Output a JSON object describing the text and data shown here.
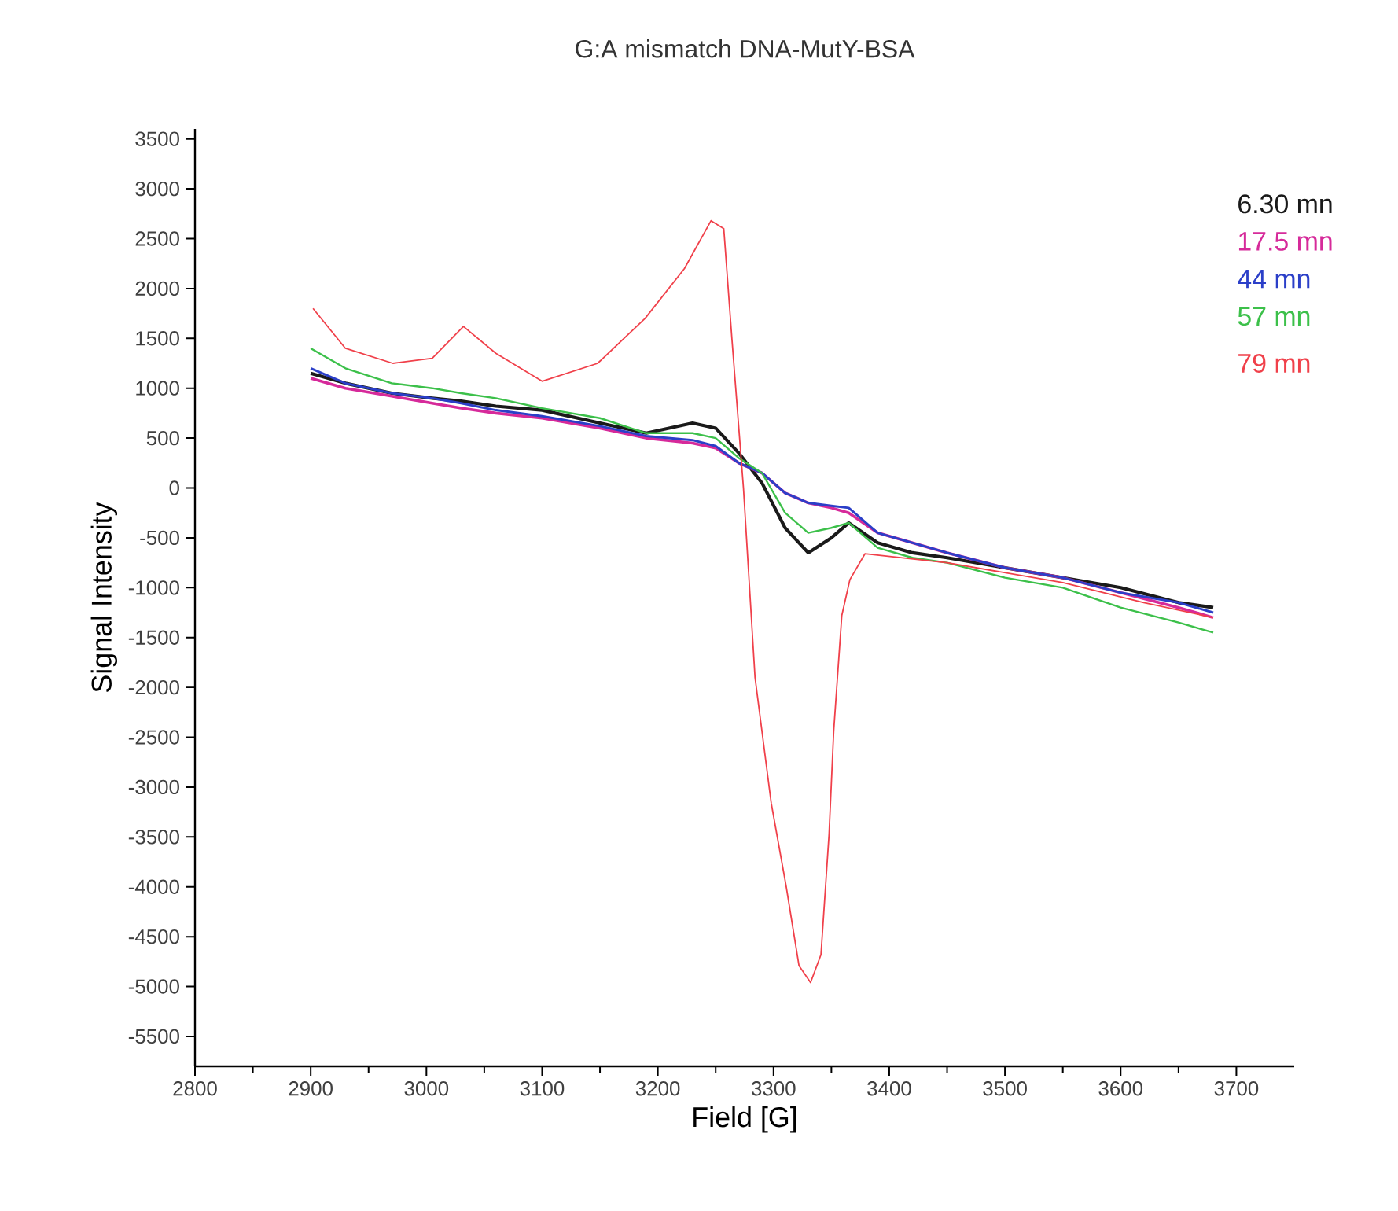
{
  "chart_data": {
    "type": "line",
    "title": "G:A mismatch DNA-MutY-BSA",
    "xlabel": "Field [G]",
    "ylabel": "Signal Intensity",
    "x": [
      2900,
      2930,
      2970,
      3005,
      3030,
      3060,
      3100,
      3150,
      3190,
      3230,
      3250,
      3270,
      3290,
      3310,
      3330,
      3350,
      3365,
      3390,
      3420,
      3450,
      3500,
      3550,
      3600,
      3650,
      3680
    ],
    "series": [
      {
        "name": "6.30 mn",
        "color": "#1a1a1a",
        "values": [
          1150,
          1050,
          950,
          900,
          870,
          820,
          780,
          650,
          550,
          650,
          600,
          350,
          50,
          -400,
          -650,
          -500,
          -350,
          -550,
          -650,
          -700,
          -800,
          -900,
          -1000,
          -1150,
          -1200
        ]
      },
      {
        "name": "17.5 mn",
        "color": "#d62a9a",
        "values": [
          1100,
          1000,
          920,
          850,
          800,
          750,
          700,
          600,
          500,
          450,
          400,
          250,
          150,
          -50,
          -150,
          -200,
          -250,
          -450,
          -550,
          -650,
          -800,
          -900,
          -1050,
          -1200,
          -1300
        ]
      },
      {
        "name": "44 mn",
        "color": "#2b3fc8",
        "values": [
          1200,
          1050,
          950,
          900,
          850,
          780,
          720,
          620,
          520,
          480,
          420,
          250,
          150,
          -50,
          -150,
          -180,
          -200,
          -450,
          -550,
          -650,
          -800,
          -900,
          -1050,
          -1150,
          -1250
        ]
      },
      {
        "name": "57 mn",
        "color": "#3cc04a",
        "values": [
          1400,
          1200,
          1050,
          1000,
          950,
          900,
          800,
          700,
          550,
          550,
          500,
          300,
          150,
          -250,
          -450,
          -400,
          -350,
          -600,
          -700,
          -750,
          -900,
          -1000,
          -1200,
          -1350,
          -1450
        ]
      },
      {
        "name": "79 mn",
        "color": "#f0404a",
        "x": [
          2902,
          2930,
          2971,
          3005,
          3032,
          3060,
          3100,
          3148,
          3189,
          3223,
          3246,
          3257,
          3264,
          3274,
          3284,
          3298,
          3311,
          3322,
          3332,
          3341,
          3348,
          3352,
          3359,
          3366,
          3379,
          3450,
          3550,
          3620,
          3680
        ],
        "values": [
          1800,
          1400,
          1250,
          1300,
          1620,
          1350,
          1070,
          1250,
          1700,
          2200,
          2680,
          2600,
          1500,
          0,
          -1900,
          -3160,
          -4000,
          -4790,
          -4960,
          -4680,
          -3470,
          -2440,
          -1280,
          -920,
          -660,
          -750,
          -950,
          -1150,
          -1300
        ]
      }
    ],
    "xlim": [
      2800,
      3750
    ],
    "ylim": [
      -5800,
      3600
    ],
    "xticks": [
      2800,
      2900,
      3000,
      3100,
      3200,
      3300,
      3400,
      3500,
      3600,
      3700
    ],
    "yticks": [
      -5500,
      -5000,
      -4500,
      -4000,
      -3500,
      -3000,
      -2500,
      -2000,
      -1500,
      -1000,
      -500,
      0,
      500,
      1000,
      1500,
      2000,
      2500,
      3000,
      3500
    ],
    "grid": false,
    "legend": "top right",
    "marker": "none",
    "line_style": "solid"
  }
}
